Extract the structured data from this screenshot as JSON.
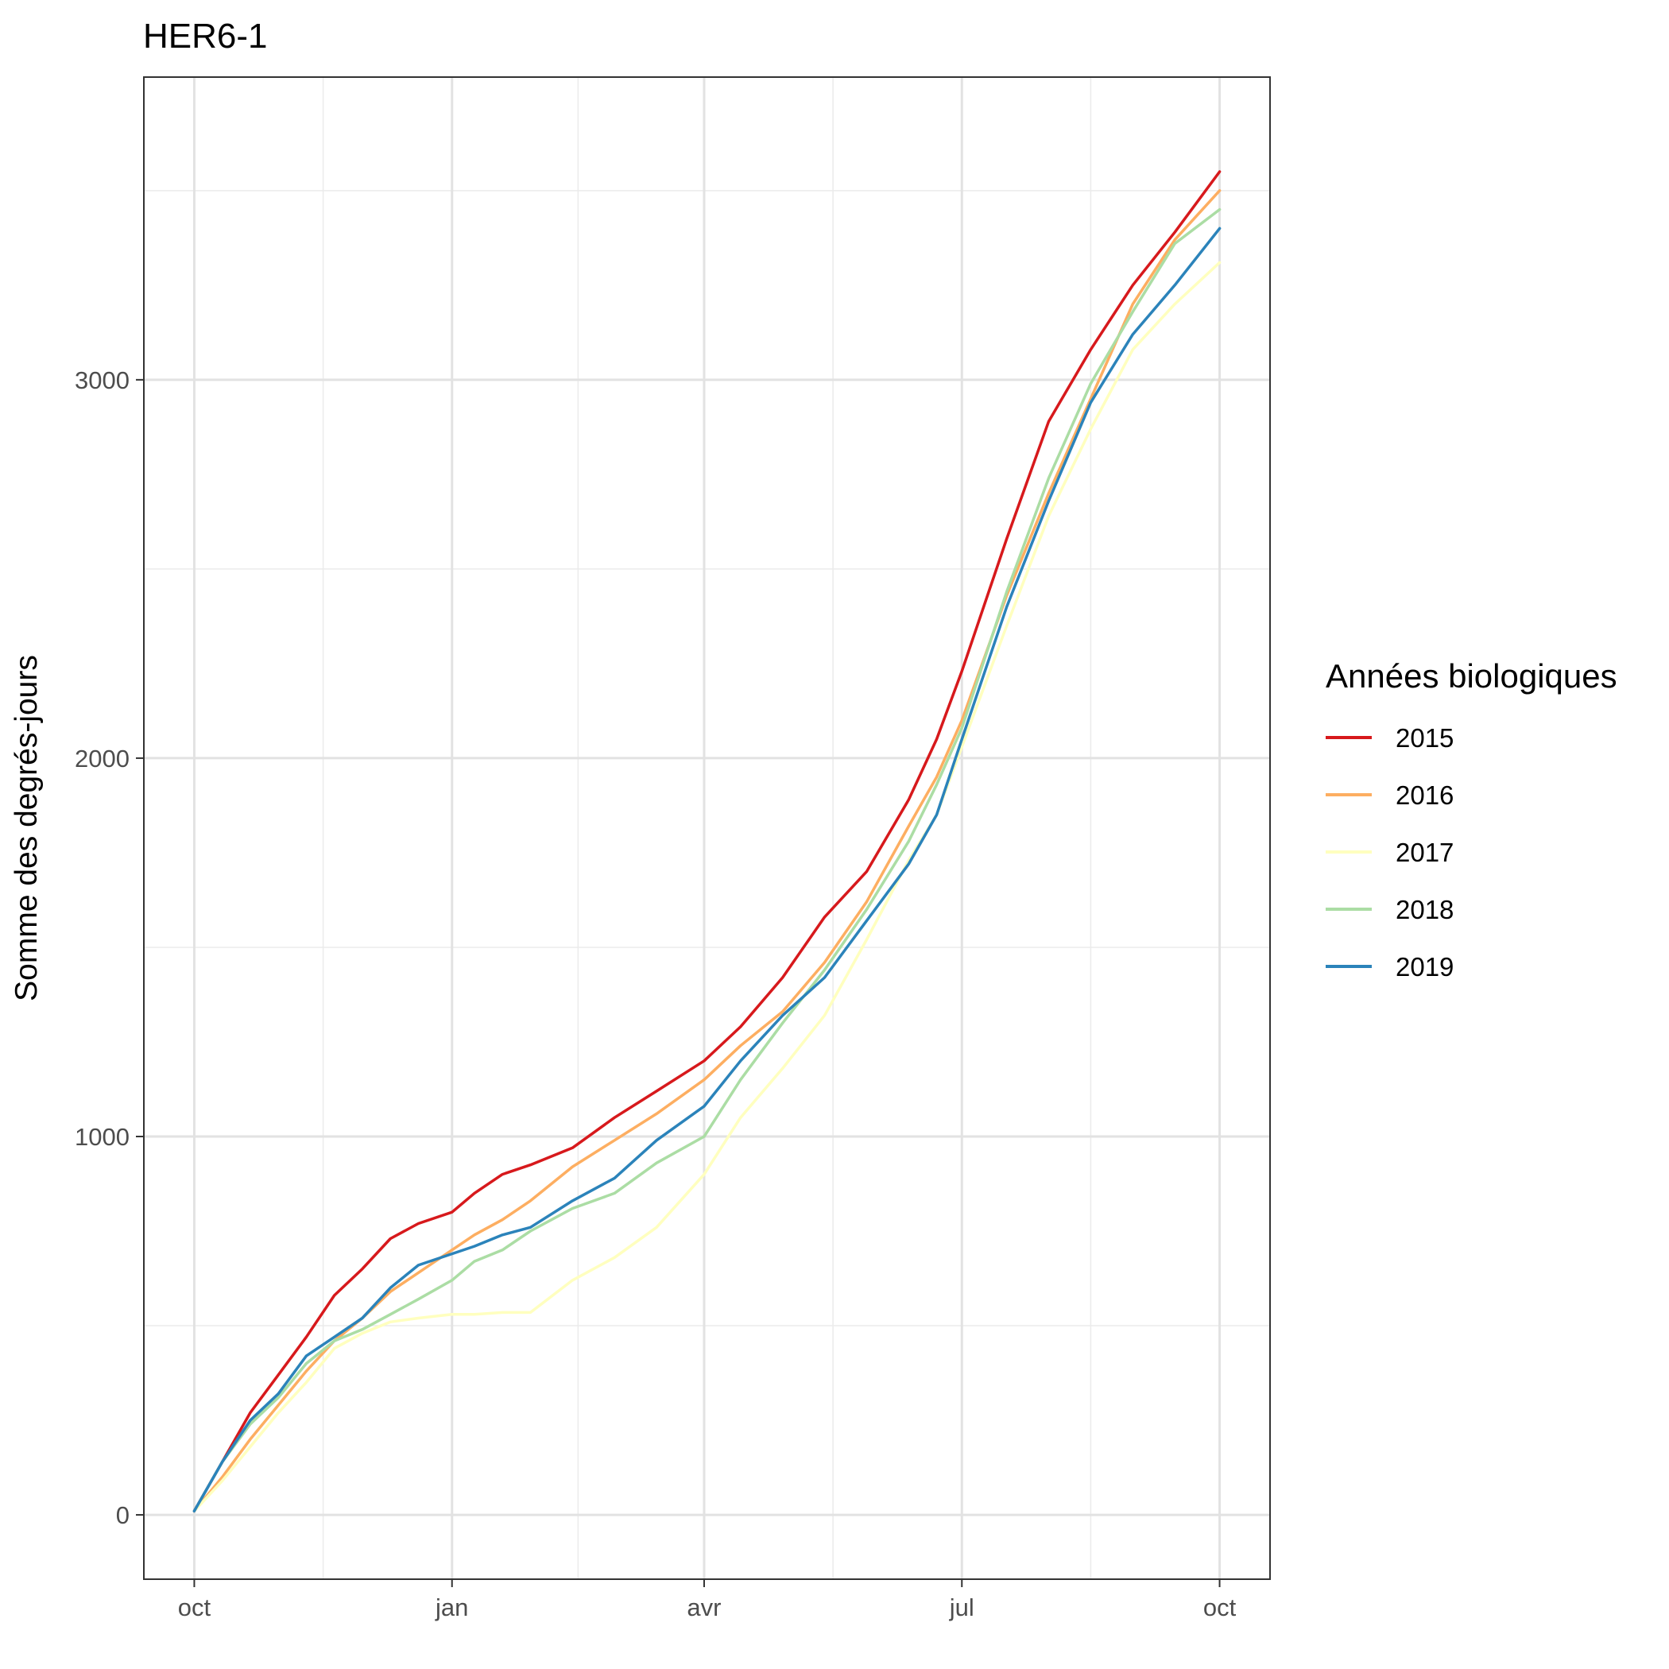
{
  "chart_data": {
    "type": "line",
    "title": "HER6-1",
    "xlabel": "",
    "ylabel": "Somme des degrés-jours",
    "x_ticks": [
      "oct",
      "jan",
      "avr",
      "jul",
      "oct"
    ],
    "x_tick_positions": [
      0,
      92,
      182,
      274,
      366
    ],
    "xlim": [
      -18,
      384
    ],
    "y_ticks": [
      0,
      1000,
      2000,
      3000
    ],
    "ylim": [
      -170,
      3800
    ],
    "grid": true,
    "legend": {
      "title": "Années biologiques",
      "position": "right"
    },
    "series": [
      {
        "name": "2015",
        "color": "#d7191c",
        "x": [
          0,
          10,
          20,
          30,
          40,
          50,
          60,
          70,
          80,
          92,
          100,
          110,
          120,
          135,
          150,
          165,
          182,
          195,
          210,
          225,
          240,
          255,
          265,
          274,
          290,
          305,
          320,
          335,
          350,
          366
        ],
        "y": [
          10,
          140,
          270,
          370,
          470,
          580,
          650,
          730,
          770,
          800,
          850,
          900,
          925,
          970,
          1050,
          1120,
          1200,
          1290,
          1420,
          1580,
          1700,
          1890,
          2050,
          2230,
          2580,
          2890,
          3080,
          3250,
          3390,
          3550
        ]
      },
      {
        "name": "2016",
        "color": "#fdae61",
        "x": [
          0,
          10,
          20,
          30,
          40,
          50,
          60,
          70,
          80,
          92,
          100,
          110,
          120,
          135,
          150,
          165,
          182,
          195,
          210,
          225,
          240,
          255,
          265,
          274,
          290,
          305,
          320,
          335,
          350,
          366
        ],
        "y": [
          10,
          100,
          200,
          290,
          380,
          460,
          520,
          590,
          640,
          700,
          740,
          780,
          830,
          920,
          990,
          1060,
          1150,
          1240,
          1330,
          1460,
          1620,
          1820,
          1950,
          2100,
          2430,
          2700,
          2950,
          3200,
          3370,
          3500
        ]
      },
      {
        "name": "2017",
        "color": "#ffffbf",
        "x": [
          0,
          10,
          20,
          30,
          40,
          50,
          60,
          70,
          80,
          92,
          100,
          110,
          120,
          135,
          150,
          165,
          182,
          195,
          210,
          225,
          240,
          255,
          265,
          274,
          290,
          305,
          320,
          335,
          350,
          366
        ],
        "y": [
          10,
          90,
          180,
          270,
          350,
          440,
          480,
          510,
          520,
          530,
          530,
          535,
          535,
          620,
          680,
          760,
          900,
          1050,
          1180,
          1320,
          1520,
          1730,
          1850,
          2030,
          2350,
          2640,
          2870,
          3080,
          3200,
          3310
        ]
      },
      {
        "name": "2018",
        "color": "#abdda4",
        "x": [
          0,
          10,
          20,
          30,
          40,
          50,
          60,
          70,
          80,
          92,
          100,
          110,
          120,
          135,
          150,
          165,
          182,
          195,
          210,
          225,
          240,
          255,
          265,
          274,
          290,
          305,
          320,
          335,
          350,
          366
        ],
        "y": [
          10,
          140,
          240,
          310,
          400,
          460,
          490,
          530,
          570,
          620,
          670,
          700,
          750,
          810,
          850,
          930,
          1000,
          1150,
          1300,
          1440,
          1600,
          1780,
          1930,
          2080,
          2440,
          2740,
          2990,
          3180,
          3360,
          3450
        ]
      },
      {
        "name": "2019",
        "color": "#2b83ba",
        "x": [
          0,
          10,
          20,
          30,
          40,
          50,
          60,
          70,
          80,
          92,
          100,
          110,
          120,
          135,
          150,
          165,
          182,
          195,
          210,
          225,
          240,
          255,
          265,
          274,
          290,
          305,
          320,
          335,
          350,
          366
        ],
        "y": [
          10,
          140,
          250,
          320,
          420,
          470,
          520,
          600,
          660,
          690,
          710,
          740,
          760,
          830,
          890,
          990,
          1080,
          1200,
          1320,
          1420,
          1570,
          1720,
          1850,
          2050,
          2400,
          2680,
          2940,
          3120,
          3250,
          3400
        ]
      }
    ]
  }
}
